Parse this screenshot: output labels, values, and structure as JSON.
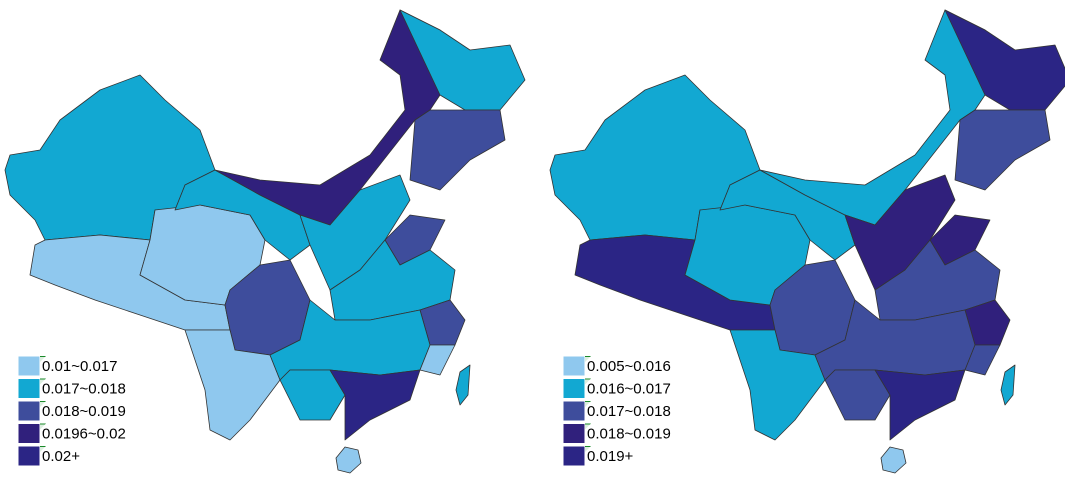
{
  "maps": [
    {
      "legend": [
        {
          "label": "0.01~0.017",
          "color": "#8fc8ee"
        },
        {
          "label": "0.017~0.018",
          "color": "#12a8d2"
        },
        {
          "label": "0.018~0.019",
          "color": "#3e4d9c"
        },
        {
          "label": "0.0196~0.02",
          "color": "#30207c"
        },
        {
          "label": "0.02+",
          "color": "#2b2585"
        }
      ]
    },
    {
      "legend": [
        {
          "label": "0.005~0.016",
          "color": "#8fc8ee"
        },
        {
          "label": "0.016~0.017",
          "color": "#12a8d2"
        },
        {
          "label": "0.017~0.018",
          "color": "#3e4d9c"
        },
        {
          "label": "0.018~0.019",
          "color": "#30207c"
        },
        {
          "label": "0.019+",
          "color": "#2b2585"
        }
      ]
    }
  ]
}
